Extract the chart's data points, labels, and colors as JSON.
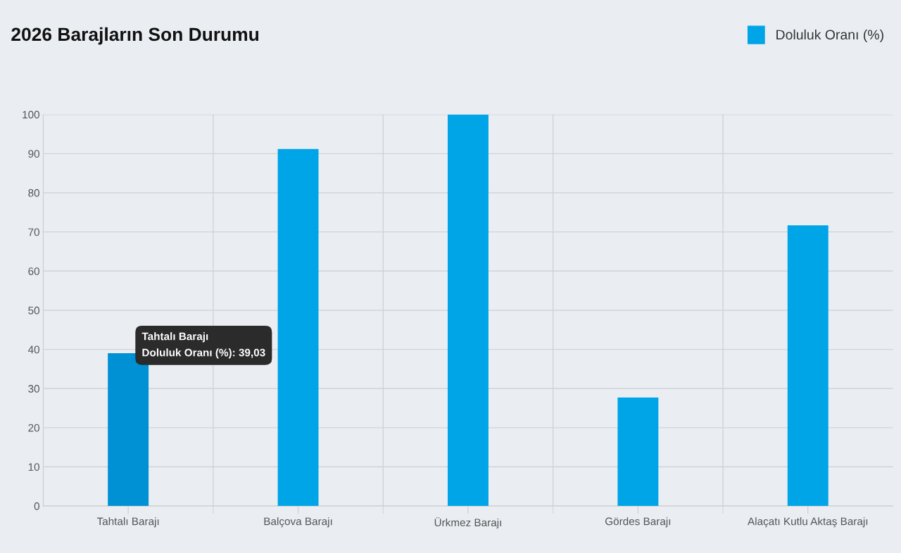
{
  "chart_data": {
    "type": "bar",
    "title": "2026 Barajların Son Durumu",
    "categories": [
      "Tahtalı Barajı",
      "Balçova Barajı",
      "Ürkmez Barajı",
      "Gördes Barajı",
      "Alaçatı Kutlu Aktaş Barajı"
    ],
    "series": [
      {
        "name": "Doluluk Oranı (%)",
        "color": "#00a5e8",
        "colors": [
          "#0091d5",
          "#00a5e8",
          "#00a5e8",
          "#00a5e8",
          "#00a5e8"
        ],
        "values": [
          39.03,
          91.2,
          100,
          27.7,
          71.7
        ]
      }
    ],
    "ylim": [
      0,
      100
    ],
    "yticks": [
      0,
      10,
      20,
      30,
      40,
      50,
      60,
      70,
      80,
      90,
      100
    ],
    "grid": true,
    "legend": "top right",
    "annotations": [
      {
        "text": "Tahtalı Barajı\nDoluluk Oranı (%): 39,03",
        "x": "Tahtalı Barajı",
        "y": 39.03
      }
    ]
  }
}
